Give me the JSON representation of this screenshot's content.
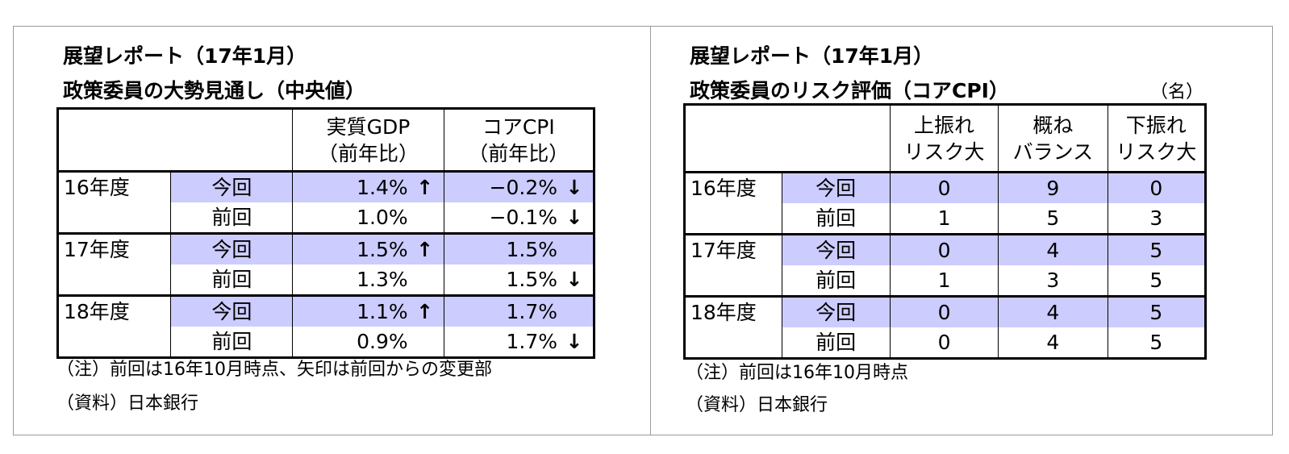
{
  "left": {
    "title_line1": "展望レポート（17年1月）",
    "title_line2": "政策委員の大勢見通し（中央値）",
    "header": {
      "gdp_l1": "実質GDP",
      "gdp_l2": "（前年比）",
      "cpi_l1": "コアCPI",
      "cpi_l2": "（前年比）"
    },
    "rows": [
      {
        "year": "16年度",
        "current": "今回",
        "cur_gdp": "1.4%",
        "cur_gdp_arrow": "↑",
        "cur_cpi": "−0.2%",
        "cur_cpi_arrow": "↓",
        "previous": "前回",
        "prev_gdp": "1.0%",
        "prev_gdp_arrow": "",
        "prev_cpi": "−0.1%",
        "prev_cpi_arrow": "↓"
      },
      {
        "year": "17年度",
        "current": "今回",
        "cur_gdp": "1.5%",
        "cur_gdp_arrow": "↑",
        "cur_cpi": "1.5%",
        "cur_cpi_arrow": "",
        "previous": "前回",
        "prev_gdp": "1.3%",
        "prev_gdp_arrow": "",
        "prev_cpi": "1.5%",
        "prev_cpi_arrow": "↓"
      },
      {
        "year": "18年度",
        "current": "今回",
        "cur_gdp": "1.1%",
        "cur_gdp_arrow": "↑",
        "cur_cpi": "1.7%",
        "cur_cpi_arrow": "",
        "previous": "前回",
        "prev_gdp": "0.9%",
        "prev_gdp_arrow": "",
        "prev_cpi": "1.7%",
        "prev_cpi_arrow": "↓"
      }
    ],
    "note": "（注）前回は16年10月時点、矢印は前回からの変更部",
    "source": "（資料）日本銀行"
  },
  "right": {
    "title_line1": "展望レポート（17年1月）",
    "title_line2": "政策委員のリスク評価（コアCPI）",
    "unit": "（名）",
    "header": {
      "up_l1": "上振れ",
      "up_l2": "リスク大",
      "bal_l1": "概ね",
      "bal_l2": "バランス",
      "down_l1": "下振れ",
      "down_l2": "リスク大"
    },
    "rows": [
      {
        "year": "16年度",
        "current": "今回",
        "cur": [
          "0",
          "9",
          "0"
        ],
        "previous": "前回",
        "prev": [
          "1",
          "5",
          "3"
        ]
      },
      {
        "year": "17年度",
        "current": "今回",
        "cur": [
          "0",
          "4",
          "5"
        ],
        "previous": "前回",
        "prev": [
          "1",
          "3",
          "5"
        ]
      },
      {
        "year": "18年度",
        "current": "今回",
        "cur": [
          "0",
          "4",
          "5"
        ],
        "previous": "前回",
        "prev": [
          "0",
          "4",
          "5"
        ]
      }
    ],
    "note": "（注）前回は16年10月時点",
    "source": "（資料）日本銀行"
  }
}
